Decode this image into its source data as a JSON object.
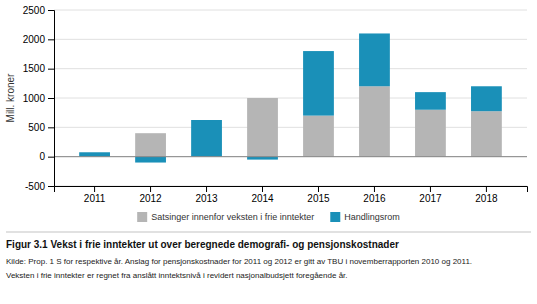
{
  "chart_data": {
    "type": "bar",
    "title": "Figur 3.1  Vekst i frie inntekter ut over beregnede demografi- og pensjonskostnader",
    "annotations": [
      "Kilde: Prop. 1 S for respektive år. Anslag for pensjonskostnader for 2011 og 2012 er gitt av TBU i novemberrapporten 2010 og 2011.",
      "Veksten i frie inntekter er regnet fra anslått inntektsnivå i revidert nasjonalbudsjett foregående år."
    ],
    "ylabel": "Mill. kroner",
    "categories": [
      "2011",
      "2012",
      "2013",
      "2014",
      "2015",
      "2016",
      "2017",
      "2018"
    ],
    "series": [
      {
        "name": "Satsinger innenfor veksten i frie inntekter",
        "color": "#b5b5b5",
        "values": [
          0,
          400,
          0,
          1000,
          700,
          1200,
          800,
          775
        ]
      },
      {
        "name": "Handlingsrom",
        "color": "#1a90b8",
        "values": [
          75,
          -100,
          625,
          -50,
          1100,
          900,
          300,
          425
        ]
      }
    ],
    "stacked": true,
    "ylim": [
      -500,
      2500
    ],
    "yticks": [
      -500,
      0,
      500,
      1000,
      1500,
      2000,
      2500
    ],
    "grid": true,
    "legend": "bottom"
  }
}
